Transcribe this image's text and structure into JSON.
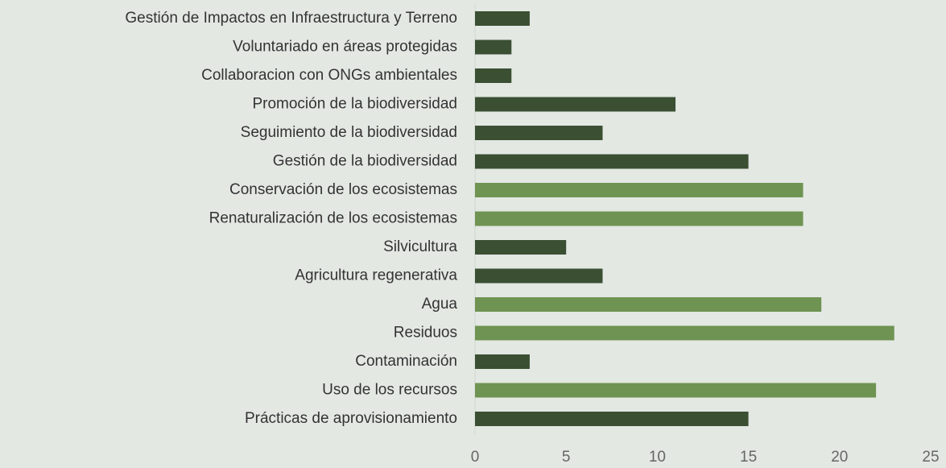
{
  "chart_data": {
    "type": "bar",
    "orientation": "horizontal",
    "categories": [
      "Gestión de Impactos  en Infraestructura y Terreno",
      "Voluntariado en áreas protegidas",
      "Collaboracion con ONGs ambientales",
      "Promoción de la biodiversidad",
      "Seguimiento de la biodiversidad",
      "Gestión de la biodiversidad",
      "Conservación de los ecosistemas",
      "Renaturalización de los ecosistemas",
      "Silvicultura",
      "Agricultura regenerativa",
      "Agua",
      "Residuos",
      "Contaminación",
      "Uso de los recursos",
      "Prácticas de aprovisionamiento"
    ],
    "values": [
      3,
      2,
      2,
      11,
      7,
      15,
      18,
      18,
      5,
      7,
      19,
      23,
      3,
      22,
      15
    ],
    "colors": [
      "#3b4f33",
      "#3b4f33",
      "#3b4f33",
      "#3b4f33",
      "#3b4f33",
      "#3b4f33",
      "#6f9352",
      "#6f9352",
      "#3b4f33",
      "#3b4f33",
      "#6f9352",
      "#6f9352",
      "#3b4f33",
      "#6f9352",
      "#3b4f33"
    ],
    "xlim": [
      0,
      25
    ],
    "xticks": [
      0,
      5,
      10,
      15,
      20,
      25
    ],
    "grid": false
  }
}
